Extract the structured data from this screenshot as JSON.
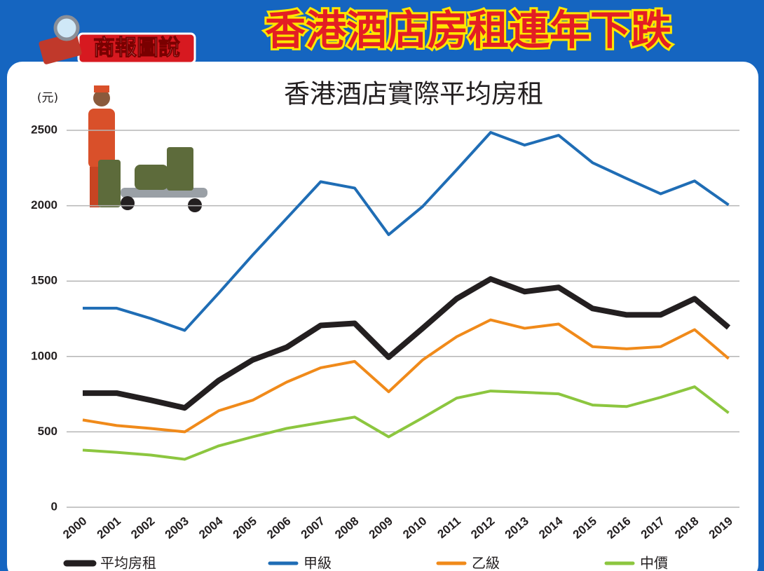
{
  "header": {
    "badge": "商報圖說",
    "title": "香港酒店房租連年下跌"
  },
  "chart_data": {
    "type": "line",
    "title": "香港酒店實際平均房租",
    "y_unit": "(元)",
    "categories": [
      "2000",
      "2001",
      "2002",
      "2003",
      "2004",
      "2005",
      "2006",
      "2007",
      "2008",
      "2009",
      "2010",
      "2011",
      "2012",
      "2013",
      "2014",
      "2015",
      "2016",
      "2017",
      "2018",
      "2019"
    ],
    "ylim": [
      0,
      2500
    ],
    "yticks": [
      0,
      500,
      1000,
      1500,
      2000,
      2500
    ],
    "grid": true,
    "series": [
      {
        "name": "平均房租",
        "color": "#231f20",
        "values": [
          757,
          757,
          710,
          659,
          841,
          977,
          1061,
          1206,
          1220,
          995,
          1187,
          1383,
          1514,
          1430,
          1458,
          1318,
          1276,
          1276,
          1383,
          1192
        ]
      },
      {
        "name": "甲級",
        "color": "#1f6db5",
        "values": [
          1320,
          1320,
          1252,
          1173,
          1420,
          1673,
          1916,
          2159,
          2117,
          1808,
          1995,
          2238,
          2486,
          2402,
          2467,
          2285,
          2180,
          2079,
          2164,
          2005
        ]
      },
      {
        "name": "乙級",
        "color": "#f08a1a",
        "values": [
          579,
          542,
          523,
          500,
          640,
          710,
          830,
          925,
          967,
          766,
          977,
          1131,
          1243,
          1187,
          1215,
          1065,
          1051,
          1065,
          1178,
          986
        ]
      },
      {
        "name": "中價",
        "color": "#8cc63f",
        "values": [
          379,
          364,
          346,
          318,
          407,
          467,
          523,
          561,
          598,
          467,
          593,
          724,
          771,
          762,
          752,
          678,
          668,
          729,
          799,
          626
        ]
      }
    ]
  }
}
